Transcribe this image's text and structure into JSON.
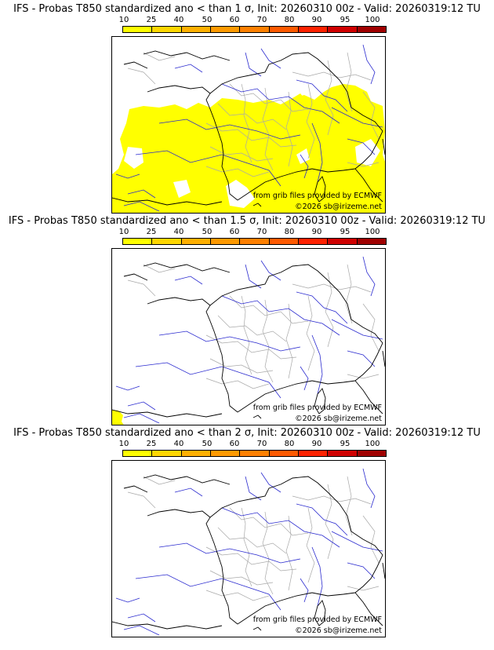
{
  "legend": {
    "ticks": [
      "10",
      "25",
      "40",
      "50",
      "60",
      "70",
      "80",
      "90",
      "95",
      "100"
    ],
    "colors": [
      "#ffff00",
      "#ffd700",
      "#ffb000",
      "#ff9a00",
      "#ff8000",
      "#ff5a00",
      "#ff2200",
      "#d00000",
      "#a00000",
      "#5a0000"
    ]
  },
  "panels": [
    {
      "title": "IFS - Probas T850  standardized ano < than 1 σ, Init: 20260310 00z - Valid: 20260319:12 TU",
      "coverage": "large"
    },
    {
      "title": "IFS - Probas T850  standardized ano < than 1.5 σ, Init: 20260310 00z - Valid: 20260319:12 TU",
      "coverage": "tiny"
    },
    {
      "title": "IFS - Probas T850  standardized ano < than 2 σ, Init: 20260310 00z - Valid: 20260319:12 TU",
      "coverage": "none"
    }
  ],
  "credits": {
    "source": "from grib files provided by ECMWF",
    "copyright": "©2026 sb@irizeme.net"
  },
  "colors": {
    "prob_fill": "#ffff00",
    "coast": "#000000",
    "rivers": "#2222cc",
    "borders": "#9a9a9a"
  }
}
